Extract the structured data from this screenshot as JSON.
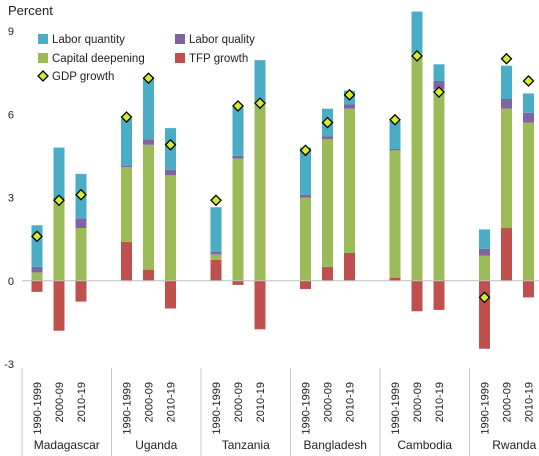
{
  "chart_data": {
    "type": "bar",
    "stacked": true,
    "ylabel": "Percent",
    "ylim": [
      -3,
      9
    ],
    "yticks": [
      "-3",
      "0",
      "3",
      "6",
      "9"
    ],
    "grid": false,
    "legend_position": "top-left",
    "groups": [
      "Madagascar",
      "Uganda",
      "Tanzania",
      "Bangladesh",
      "Cambodia",
      "Rwanda"
    ],
    "periods": [
      "1990-1999",
      "2000-09",
      "2010-19"
    ],
    "series": [
      {
        "name": "Labor quantity",
        "color": "#4BACC6",
        "values": [
          1.5,
          1.8,
          1.6,
          1.7,
          2.2,
          1.5,
          1.6,
          1.8,
          1.5,
          1.7,
          1.0,
          0.5,
          1.0,
          1.5,
          0.6,
          0.7,
          1.2,
          0.7
        ]
      },
      {
        "name": "Labor quality",
        "color": "#8064A2",
        "values": [
          0.2,
          0.1,
          0.35,
          0.05,
          0.2,
          0.2,
          0.1,
          0.1,
          0.05,
          0.1,
          0.1,
          0.15,
          0.05,
          0.0,
          0.3,
          0.25,
          0.35,
          0.35
        ]
      },
      {
        "name": "Capital deepening",
        "color": "#9BBB59",
        "values": [
          0.3,
          2.9,
          1.9,
          2.7,
          4.5,
          3.8,
          0.2,
          4.4,
          6.4,
          3.0,
          4.6,
          5.2,
          4.6,
          8.2,
          6.9,
          0.9,
          4.3,
          5.7
        ]
      },
      {
        "name": "TFP growth",
        "color": "#C0504D",
        "values": [
          -0.4,
          -1.8,
          -0.75,
          1.4,
          0.4,
          -1.0,
          0.75,
          -0.15,
          -1.75,
          -0.3,
          0.5,
          1.0,
          0.1,
          -1.1,
          -1.05,
          -2.45,
          1.9,
          -0.6
        ]
      }
    ],
    "gdp_growth": {
      "name": "GDP growth",
      "color": "#000000",
      "values": [
        1.6,
        2.9,
        3.1,
        5.9,
        7.3,
        4.9,
        2.9,
        6.3,
        6.4,
        4.7,
        5.7,
        6.7,
        5.8,
        8.1,
        6.8,
        -0.6,
        8.0,
        7.2
      ]
    }
  }
}
